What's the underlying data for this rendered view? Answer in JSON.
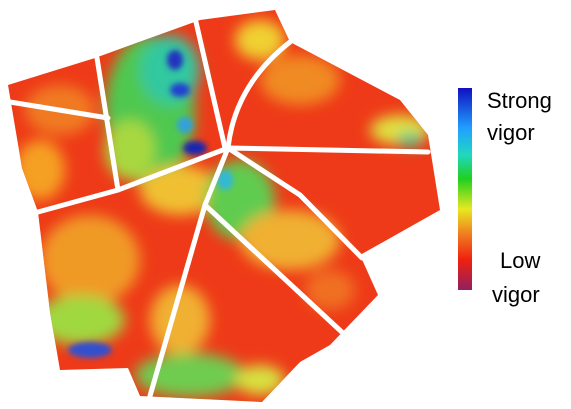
{
  "legend": {
    "high": [
      "Strong",
      "vigor"
    ],
    "low": [
      "Low",
      "vigor"
    ]
  }
}
